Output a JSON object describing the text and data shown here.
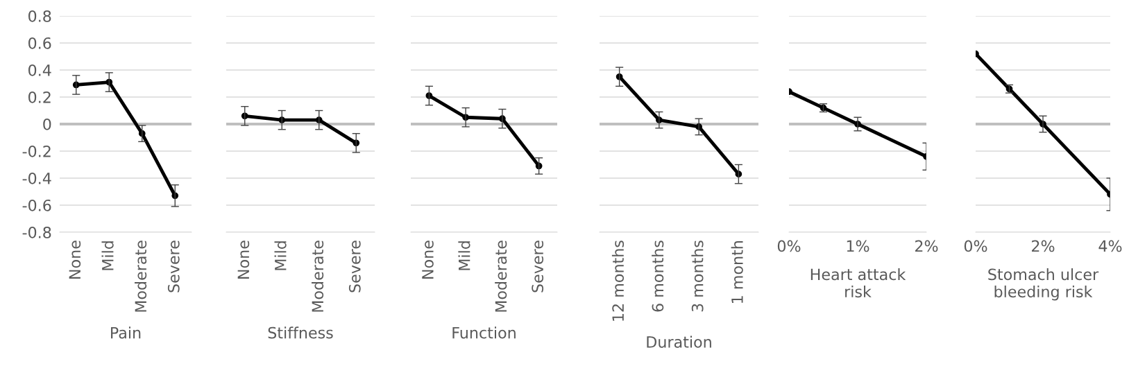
{
  "chart_data": [
    {
      "type": "line",
      "xlabel": "Pain",
      "categories": [
        "None",
        "Mild",
        "Moderate",
        "Severe"
      ],
      "ylim": [
        -0.8,
        0.8
      ],
      "yticks": [
        {
          "value": -0.8,
          "label": "-0.8"
        },
        {
          "value": -0.6,
          "label": "-0.6"
        },
        {
          "value": -0.4,
          "label": "-0.4"
        },
        {
          "value": -0.2,
          "label": "-0.2"
        },
        0,
        0.2,
        0.4,
        0.6,
        0.8
      ],
      "grid": "y",
      "marker": "circle",
      "line_style": "solid",
      "series": [
        {
          "color": "#000000",
          "values": [
            0.29,
            0.31,
            -0.07,
            -0.53
          ],
          "errors": [
            0.07,
            0.07,
            0.06,
            0.08
          ]
        }
      ],
      "ref_lines": [
        {
          "axis": "y",
          "value": 0,
          "color": "#bfbfbf"
        }
      ]
    },
    {
      "type": "line",
      "xlabel": "Stiffness",
      "categories": [
        "None",
        "Mild",
        "Moderate",
        "Severe"
      ],
      "ylim": [
        -0.8,
        0.8
      ],
      "yticks": [
        {
          "value": -0.8,
          "label": null
        },
        {
          "value": -0.6,
          "label": null
        },
        {
          "value": -0.4,
          "label": null
        },
        {
          "value": -0.2,
          "label": null
        },
        {
          "value": 0,
          "label": null
        },
        {
          "value": 0.2,
          "label": null
        },
        {
          "value": 0.4,
          "label": null
        },
        {
          "value": 0.6,
          "label": null
        },
        {
          "value": 0.8,
          "label": null
        }
      ],
      "grid": "y",
      "marker": "circle",
      "line_style": "solid",
      "tick_labels": "x",
      "series": [
        {
          "color": "#000000",
          "values": [
            0.06,
            0.03,
            0.03,
            -0.14
          ],
          "errors": [
            0.07,
            0.07,
            0.07,
            0.07
          ]
        }
      ],
      "ref_lines": [
        {
          "axis": "y",
          "value": 0,
          "color": "#bfbfbf"
        }
      ]
    },
    {
      "type": "line",
      "xlabel": "Function",
      "categories": [
        "None",
        "Mild",
        "Moderate",
        "Severe"
      ],
      "ylim": [
        -0.8,
        0.8
      ],
      "yticks": [
        {
          "value": -0.8,
          "label": null
        },
        {
          "value": -0.6,
          "label": null
        },
        {
          "value": -0.4,
          "label": null
        },
        {
          "value": -0.2,
          "label": null
        },
        {
          "value": 0,
          "label": null
        },
        {
          "value": 0.2,
          "label": null
        },
        {
          "value": 0.4,
          "label": null
        },
        {
          "value": 0.6,
          "label": null
        },
        {
          "value": 0.8,
          "label": null
        }
      ],
      "grid": "y",
      "marker": "circle",
      "line_style": "solid",
      "tick_labels": "x",
      "series": [
        {
          "color": "#000000",
          "values": [
            0.21,
            0.05,
            0.04,
            -0.31
          ],
          "errors": [
            0.07,
            0.07,
            0.07,
            0.06
          ]
        }
      ],
      "ref_lines": [
        {
          "axis": "y",
          "value": 0,
          "color": "#bfbfbf"
        }
      ]
    },
    {
      "type": "line",
      "xlabel": "Duration",
      "categories": [
        "12 months",
        "6 months",
        "3 months",
        "1 month"
      ],
      "ylim": [
        -0.8,
        0.8
      ],
      "yticks": [
        {
          "value": -0.8,
          "label": null
        },
        {
          "value": -0.6,
          "label": null
        },
        {
          "value": -0.4,
          "label": null
        },
        {
          "value": -0.2,
          "label": null
        },
        {
          "value": 0,
          "label": null
        },
        {
          "value": 0.2,
          "label": null
        },
        {
          "value": 0.4,
          "label": null
        },
        {
          "value": 0.6,
          "label": null
        },
        {
          "value": 0.8,
          "label": null
        }
      ],
      "grid": "y",
      "marker": "circle",
      "line_style": "solid",
      "tick_labels": "x",
      "series": [
        {
          "color": "#000000",
          "values": [
            0.35,
            0.03,
            -0.02,
            -0.37
          ],
          "errors": [
            0.07,
            0.06,
            0.06,
            0.07
          ]
        }
      ],
      "ref_lines": [
        {
          "axis": "y",
          "value": 0,
          "color": "#bfbfbf"
        }
      ]
    },
    {
      "type": "line",
      "xlabel": "Heart attack\nrisk",
      "x": [
        0,
        0.5,
        1,
        2
      ],
      "xlim": [
        0,
        2
      ],
      "xticks": [
        {
          "value": 0,
          "label": "0%"
        },
        {
          "value": 1,
          "label": "1%"
        },
        {
          "value": 2,
          "label": "2%"
        }
      ],
      "ylim": [
        -0.8,
        0.8
      ],
      "yticks": [
        {
          "value": -0.8,
          "label": null
        },
        {
          "value": -0.6,
          "label": null
        },
        {
          "value": -0.4,
          "label": null
        },
        {
          "value": -0.2,
          "label": null
        },
        {
          "value": 0,
          "label": null
        },
        {
          "value": 0.2,
          "label": null
        },
        {
          "value": 0.4,
          "label": null
        },
        {
          "value": 0.6,
          "label": null
        },
        {
          "value": 0.8,
          "label": null
        }
      ],
      "grid": "y",
      "marker": "circle",
      "line_style": "solid",
      "tick_labels": "x",
      "series": [
        {
          "color": "#000000",
          "values": [
            0.24,
            0.12,
            0.0,
            -0.24
          ],
          "errors": [
            null,
            0.03,
            0.05,
            0.1
          ]
        }
      ],
      "ref_lines": [
        {
          "axis": "y",
          "value": 0,
          "color": "#bfbfbf"
        }
      ]
    },
    {
      "type": "line",
      "xlabel": "Stomach ulcer\nbleeding risk",
      "x": [
        0,
        1,
        2,
        4
      ],
      "xlim": [
        0,
        4
      ],
      "xticks": [
        {
          "value": 0,
          "label": "0%"
        },
        {
          "value": 2,
          "label": "2%"
        },
        {
          "value": 4,
          "label": "4%"
        }
      ],
      "ylim": [
        -0.8,
        0.8
      ],
      "yticks": [
        {
          "value": -0.8,
          "label": null
        },
        {
          "value": -0.6,
          "label": null
        },
        {
          "value": -0.4,
          "label": null
        },
        {
          "value": -0.2,
          "label": null
        },
        {
          "value": 0,
          "label": null
        },
        {
          "value": 0.2,
          "label": null
        },
        {
          "value": 0.4,
          "label": null
        },
        {
          "value": 0.6,
          "label": null
        },
        {
          "value": 0.8,
          "label": null
        }
      ],
      "grid": "y",
      "marker": "circle",
      "line_style": "solid",
      "tick_labels": "x",
      "series": [
        {
          "color": "#000000",
          "values": [
            0.52,
            0.26,
            0.0,
            -0.52
          ],
          "errors": [
            null,
            0.03,
            0.06,
            0.12
          ]
        }
      ],
      "ref_lines": [
        {
          "axis": "y",
          "value": 0,
          "color": "#bfbfbf"
        }
      ]
    }
  ]
}
